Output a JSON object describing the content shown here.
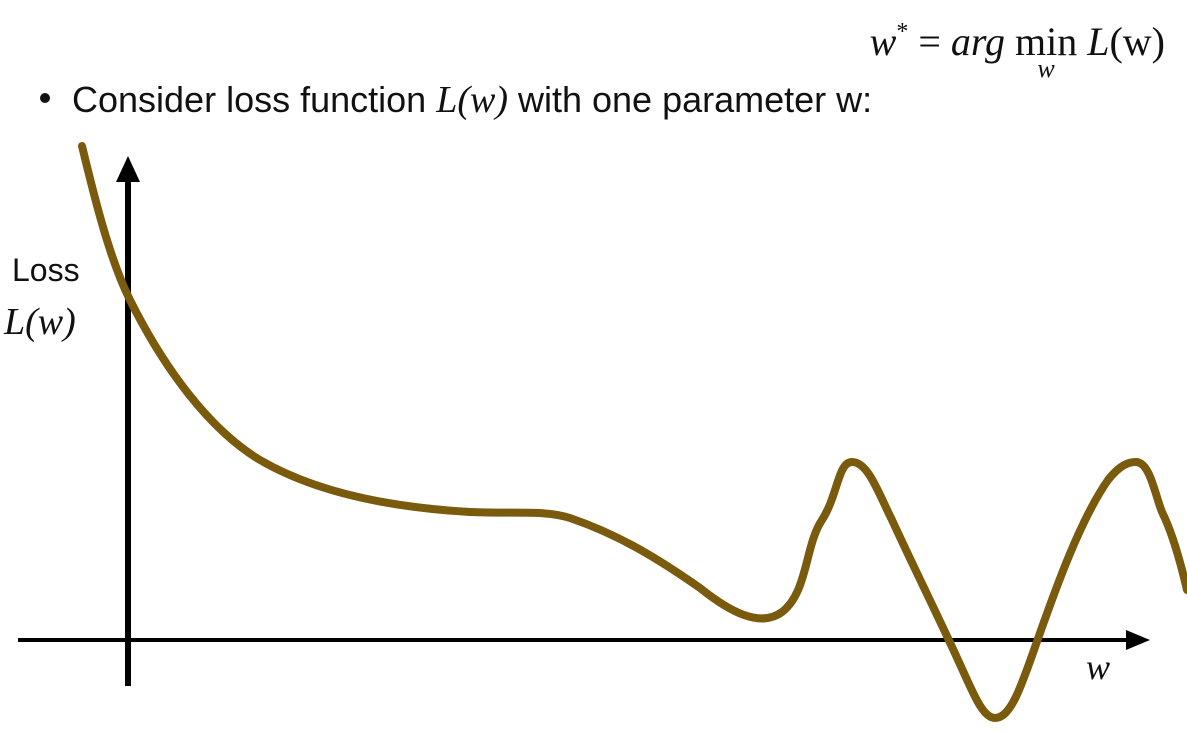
{
  "formula": {
    "lhs": "w",
    "star": "*",
    "equals": " = ",
    "argmin": "arg",
    "min": "min",
    "min_sub": "w",
    "rhs_fn": "L",
    "rhs_arg": "(w)"
  },
  "bullet": {
    "text_before": "Consider loss function ",
    "math_fn": "L",
    "math_arg": "(w)",
    "text_after": " with one parameter w:"
  },
  "axes": {
    "ylabel_line1": "Loss",
    "ylabel_fn": "L",
    "ylabel_arg": "(w)",
    "xlabel": "w"
  },
  "colors": {
    "curve": "#7a5a0c",
    "axes": "#000000"
  }
}
